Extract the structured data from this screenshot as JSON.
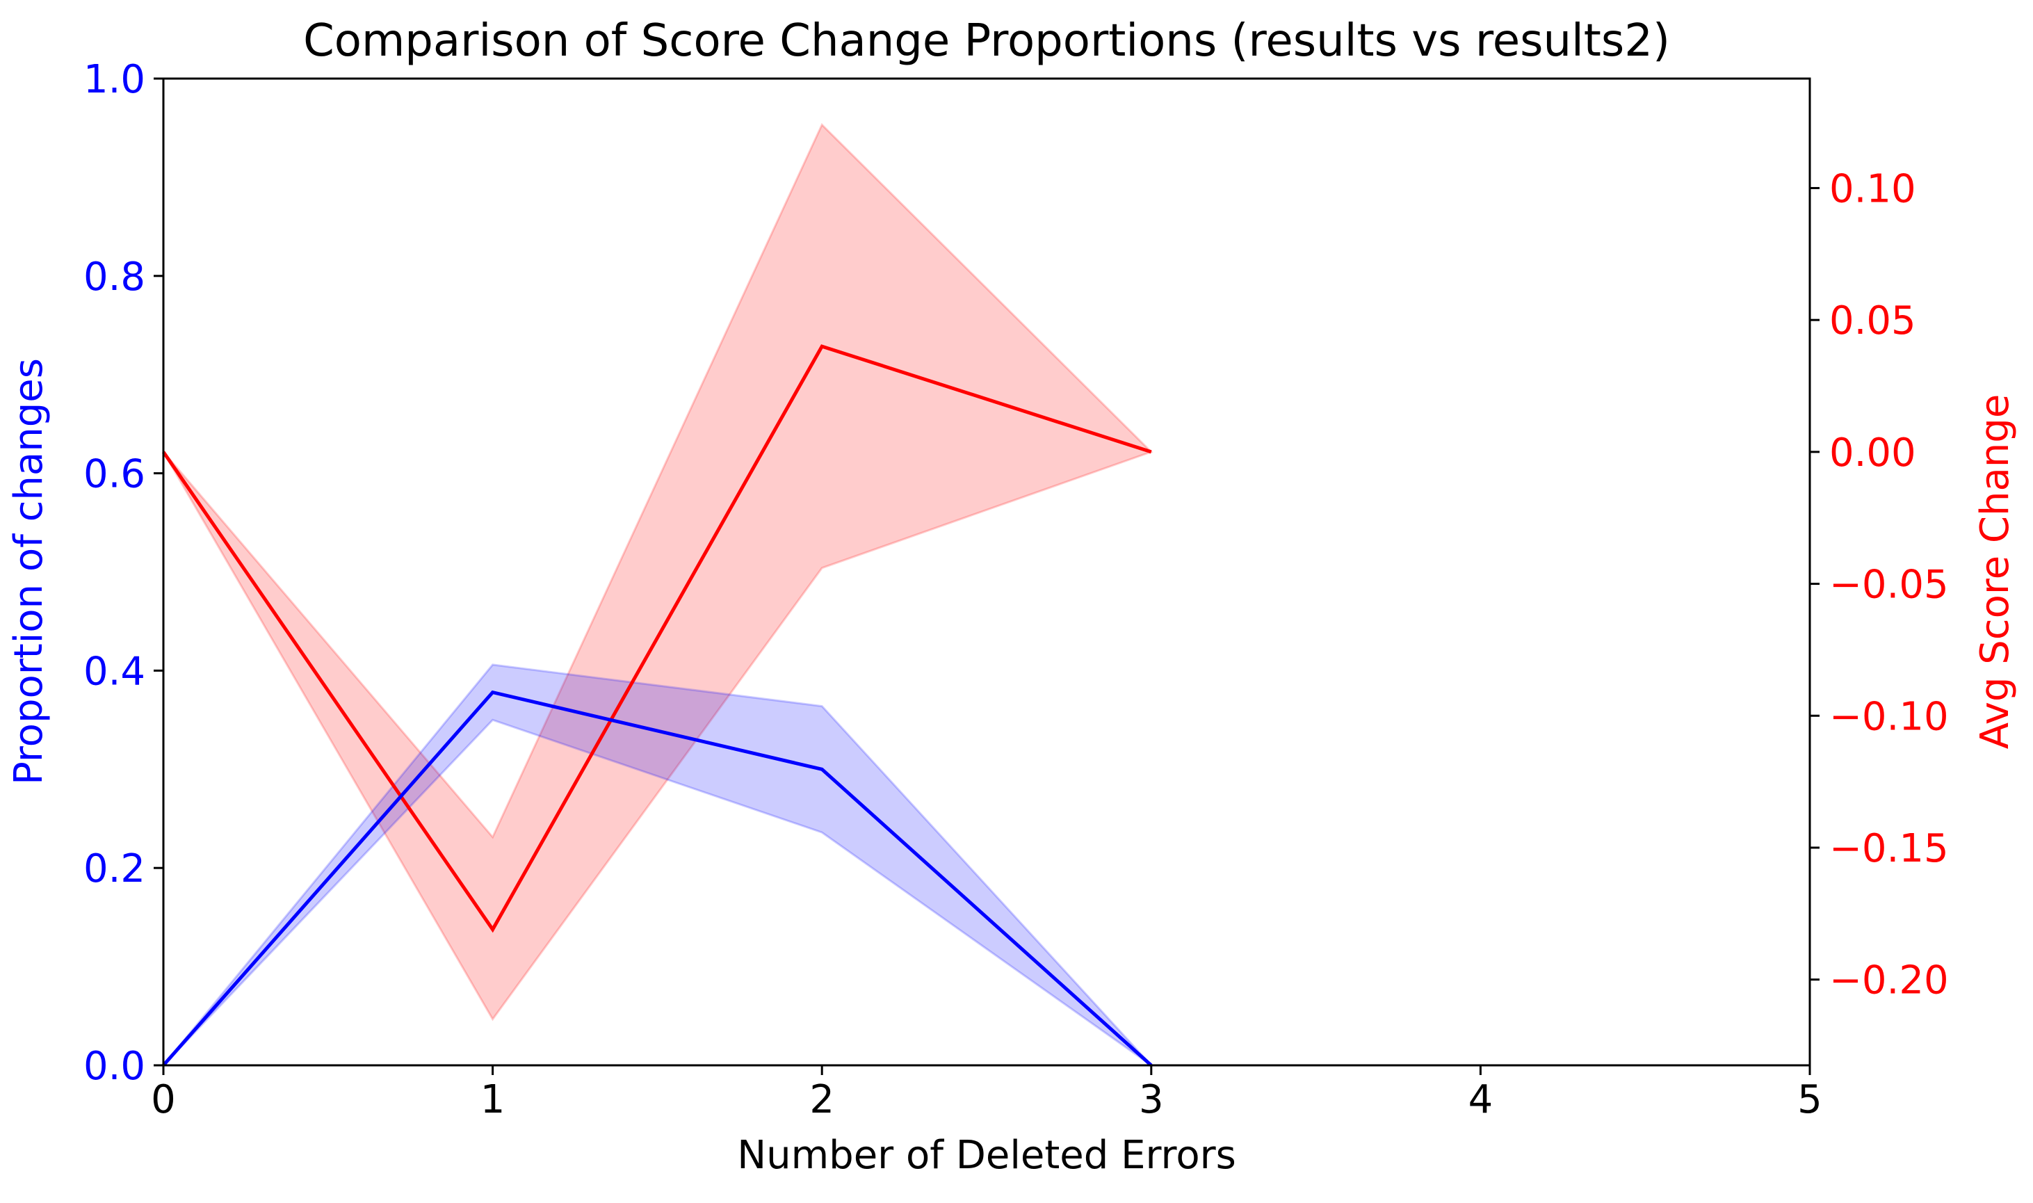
{
  "chart_data": {
    "type": "line",
    "title": "Comparison of Score Change Proportions (results vs results2)",
    "xlabel": "Number of Deleted Errors",
    "xlim": [
      0,
      5
    ],
    "xticks": [
      0,
      1,
      2,
      3,
      4,
      5
    ],
    "xtick_labels": [
      "0",
      "1",
      "2",
      "3",
      "4",
      "5"
    ],
    "left_axis": {
      "label": "Proportion of changes",
      "color": "#0000ff",
      "ylim": [
        0,
        1
      ],
      "ticks": [
        0,
        0.2,
        0.4,
        0.6,
        0.8,
        1.0
      ],
      "tick_labels": [
        "0.0",
        "0.2",
        "0.4",
        "0.6",
        "0.8",
        "1.0"
      ]
    },
    "right_axis": {
      "label": "Avg Score Change",
      "color": "#ff0000",
      "ylim": [
        -0.2325,
        0.1415
      ],
      "ticks": [
        -0.2,
        -0.15,
        -0.1,
        -0.05,
        0.0,
        0.05,
        0.1
      ],
      "tick_labels": [
        "−0.20",
        "−0.15",
        "−0.10",
        "−0.05",
        "0.00",
        "0.05",
        "0.10"
      ]
    },
    "series": [
      {
        "axis": "left",
        "color": "#0000ff",
        "x": [
          0,
          1,
          2,
          3
        ],
        "values": [
          0.0,
          0.378,
          0.3,
          0.0
        ],
        "band_lower": [
          0.0,
          0.35,
          0.236,
          0.0
        ],
        "band_upper": [
          0.0,
          0.406,
          0.364,
          0.0
        ]
      },
      {
        "axis": "right",
        "color": "#ff0000",
        "x": [
          0,
          1,
          2,
          3
        ],
        "values": [
          0.0,
          -0.181,
          0.04,
          0.0
        ],
        "band_lower": [
          0.0,
          -0.215,
          -0.044,
          0.0
        ],
        "band_upper": [
          0.0,
          -0.146,
          0.124,
          0.0
        ]
      }
    ],
    "grid": false,
    "legend": "none"
  }
}
